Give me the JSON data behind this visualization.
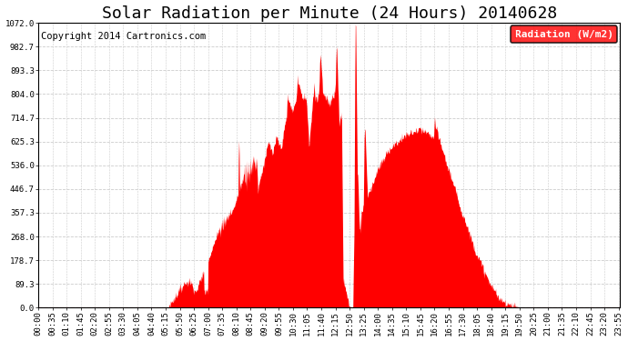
{
  "title": "Solar Radiation per Minute (24 Hours) 20140628",
  "copyright": "Copyright 2014 Cartronics.com",
  "legend_label": "Radiation (W/m2)",
  "background_color": "#ffffff",
  "plot_bg_color": "#ffffff",
  "fill_color": "#ff0000",
  "grid_color": "#cccccc",
  "dashed_line_color": "#ff0000",
  "ytick_labels": [
    "0.0",
    "89.3",
    "178.7",
    "268.0",
    "357.3",
    "446.7",
    "536.0",
    "625.3",
    "714.7",
    "804.0",
    "893.3",
    "982.7",
    "1072.0"
  ],
  "ytick_values": [
    0.0,
    89.3,
    178.7,
    268.0,
    357.3,
    446.7,
    536.0,
    625.3,
    714.7,
    804.0,
    893.3,
    982.7,
    1072.0
  ],
  "ymax": 1072.0,
  "xtick_labels": [
    "00:00",
    "00:35",
    "01:10",
    "01:45",
    "02:20",
    "02:55",
    "03:30",
    "04:05",
    "04:40",
    "05:15",
    "05:50",
    "06:25",
    "07:00",
    "07:35",
    "08:10",
    "08:45",
    "09:20",
    "09:55",
    "10:30",
    "11:05",
    "11:40",
    "12:15",
    "12:50",
    "13:25",
    "14:00",
    "14:35",
    "15:10",
    "15:45",
    "16:20",
    "16:55",
    "17:30",
    "18:05",
    "18:40",
    "19:15",
    "19:50",
    "20:25",
    "21:00",
    "21:35",
    "22:10",
    "22:45",
    "23:20",
    "23:55"
  ],
  "title_fontsize": 13,
  "copyright_fontsize": 7.5,
  "legend_fontsize": 8,
  "tick_fontsize": 6.5
}
